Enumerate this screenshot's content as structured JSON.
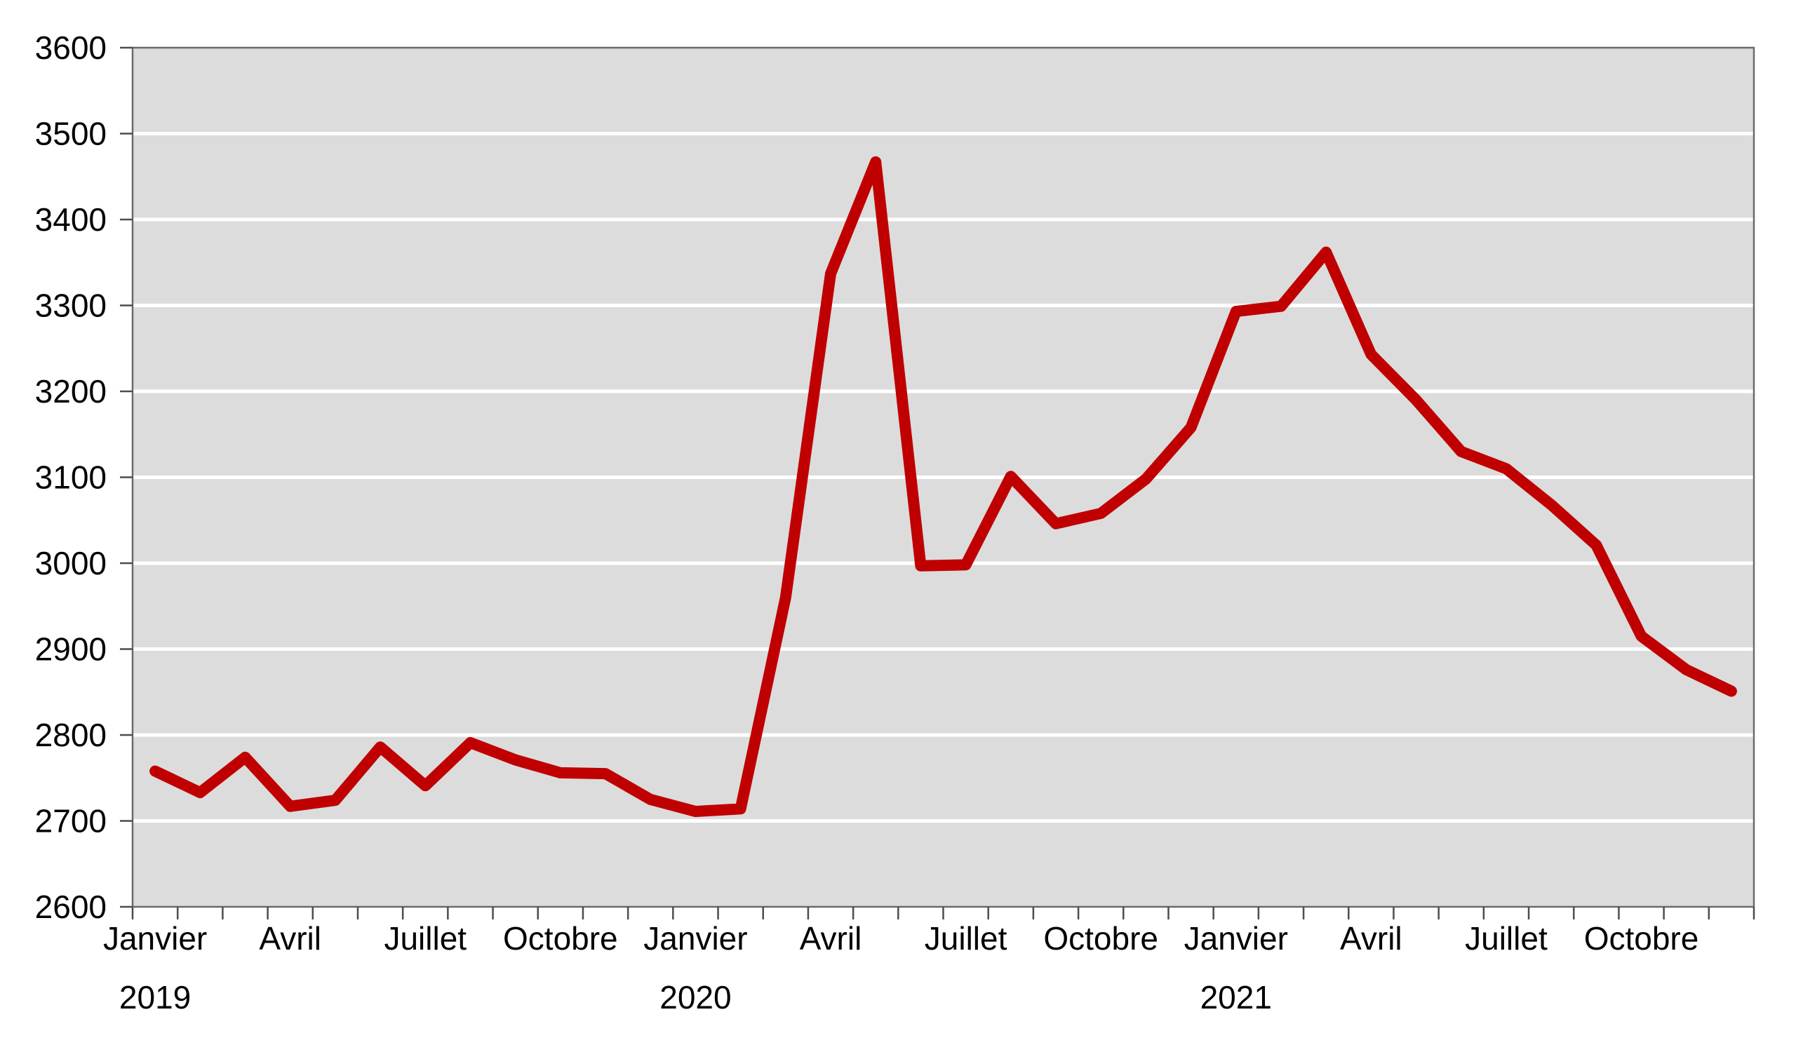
{
  "chart_data": {
    "type": "line",
    "title": "",
    "xlabel": "",
    "ylabel": "",
    "ylim": [
      2600,
      3600
    ],
    "y_tick_step": 100,
    "y_ticks": [
      2600,
      2700,
      2800,
      2900,
      3000,
      3100,
      3200,
      3300,
      3400,
      3500,
      3600
    ],
    "grid": "horizontal-white-on-gray",
    "legend_position": "none",
    "single_continuous_line": true,
    "month_tick_labels": [
      "Janvier",
      "Avril",
      "Juillet",
      "Octobre"
    ],
    "years": [
      "2019",
      "2020",
      "2021"
    ],
    "series": [
      {
        "name": "2019",
        "values": [
          2758,
          2733,
          2774,
          2717,
          2724,
          2786,
          2741,
          2791,
          2771,
          2756,
          2755,
          2725
        ]
      },
      {
        "name": "2020",
        "values": [
          2711,
          2714,
          2960,
          3337,
          3467,
          2997,
          2998,
          3101,
          3046,
          3058,
          3098,
          3158
        ]
      },
      {
        "name": "2021",
        "values": [
          3293,
          3299,
          3362,
          3243,
          3190,
          3130,
          3110,
          3068,
          3021,
          2915,
          2876,
          2851
        ]
      }
    ],
    "line_color": "#c00000",
    "plot_background": "#dcdcdc",
    "gridline_color": "#ffffff",
    "axis_color": "#6a6a6a",
    "tick_color": "#4d4d4d",
    "text_color": "#000000"
  }
}
